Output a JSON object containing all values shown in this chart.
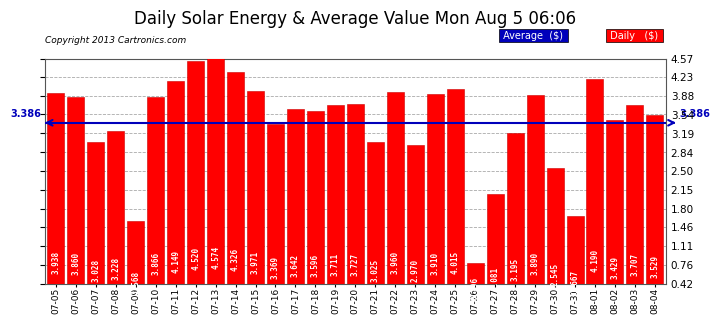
{
  "title": "Daily Solar Energy & Average Value Mon Aug 5 06:06",
  "copyright": "Copyright 2013 Cartronics.com",
  "categories": [
    "07-05",
    "07-06",
    "07-07",
    "07-08",
    "07-09",
    "07-10",
    "07-11",
    "07-12",
    "07-13",
    "07-14",
    "07-15",
    "07-16",
    "07-17",
    "07-18",
    "07-19",
    "07-20",
    "07-21",
    "07-22",
    "07-23",
    "07-24",
    "07-25",
    "07-26",
    "07-27",
    "07-28",
    "07-29",
    "07-30",
    "07-31",
    "08-01",
    "08-02",
    "08-03",
    "08-04"
  ],
  "values": [
    3.938,
    3.86,
    3.028,
    3.228,
    1.568,
    3.866,
    4.149,
    4.52,
    4.574,
    4.326,
    3.971,
    3.369,
    3.642,
    3.596,
    3.711,
    3.727,
    3.025,
    3.96,
    2.97,
    3.91,
    4.015,
    0.796,
    2.081,
    3.195,
    3.89,
    2.545,
    1.667,
    4.19,
    3.429,
    3.707,
    3.529
  ],
  "average": 3.386,
  "bar_color": "#FF0000",
  "average_line_color": "#0000BB",
  "ylim_min": 0.42,
  "ylim_max": 4.57,
  "yticks": [
    0.42,
    0.76,
    1.11,
    1.46,
    1.8,
    2.15,
    2.5,
    2.84,
    3.19,
    3.54,
    3.88,
    4.23,
    4.57
  ],
  "background_color": "#FFFFFF",
  "plot_bg_color": "#FFFFFF",
  "grid_color": "#AAAAAA",
  "title_fontsize": 12,
  "bar_edge_color": "#CC0000",
  "legend_avg_color": "#0000BB",
  "legend_daily_color": "#FF0000",
  "value_label_fontsize": 5.5,
  "copyright_fontsize": 6.5,
  "xtick_fontsize": 6.5,
  "ytick_fontsize": 7.5
}
